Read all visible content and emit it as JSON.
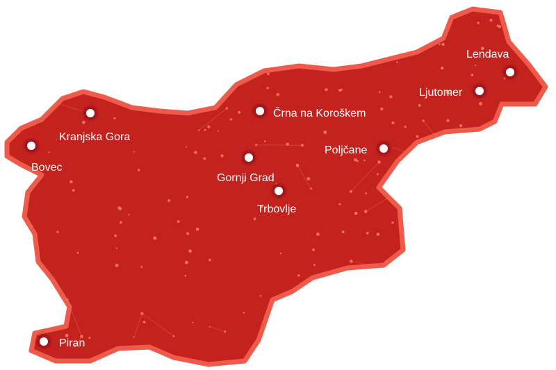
{
  "map": {
    "colors": {
      "fill": "#c4221f",
      "border": "#ef5b4b",
      "network": "#f0705f",
      "marker_ring": "#a5161a",
      "marker_center": "#ffffff"
    },
    "cities": [
      {
        "name": "Kranjska Gora"
      },
      {
        "name": "Bovec"
      },
      {
        "name": "Piran"
      },
      {
        "name": "Gornji Grad"
      },
      {
        "name": "Trbovlje"
      },
      {
        "name": "Črna na Koroškem"
      },
      {
        "name": "Poljčane"
      },
      {
        "name": "Ljutomer"
      },
      {
        "name": "Lendava"
      }
    ]
  }
}
